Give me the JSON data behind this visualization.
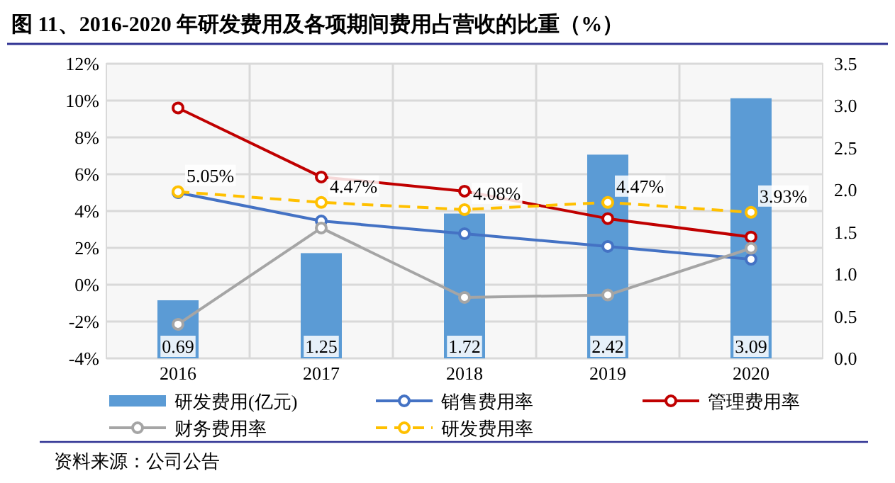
{
  "chart_data": {
    "type": "line",
    "title": "图 11、2016-2020 年研发费用及各项期间费用占营收的比重（%）",
    "annotations": [
      "资料来源：公司公告"
    ],
    "categories": [
      "2016",
      "2017",
      "2018",
      "2019",
      "2020"
    ],
    "ylim": [
      -4,
      12
    ],
    "yticks": [
      {
        "value": -4,
        "label": "-4%"
      },
      {
        "value": -2,
        "label": "-2%"
      },
      {
        "value": 0,
        "label": "0%"
      },
      {
        "value": 2,
        "label": "2%"
      },
      {
        "value": 4,
        "label": "4%"
      },
      {
        "value": 6,
        "label": "6%"
      },
      {
        "value": 8,
        "label": "8%"
      },
      {
        "value": 10,
        "label": "10%"
      },
      {
        "value": 12,
        "label": "12%"
      }
    ],
    "y2lim": [
      0,
      3.5
    ],
    "y2ticks": [
      {
        "value": 0,
        "label": "0.0"
      },
      {
        "value": 0.5,
        "label": "0.5"
      },
      {
        "value": 1,
        "label": "1.0"
      },
      {
        "value": 1.5,
        "label": "1.5"
      },
      {
        "value": 2,
        "label": "2.0"
      },
      {
        "value": 2.5,
        "label": "2.5"
      },
      {
        "value": 3,
        "label": "3.0"
      },
      {
        "value": 3.5,
        "label": "3.5"
      }
    ],
    "grid": true,
    "legend": "bottom",
    "marker": "circle",
    "series": [
      {
        "name": "研发费用(亿元)",
        "type": "bar",
        "axis": "y2",
        "color": "#5b9bd5",
        "values": [
          0.69,
          1.25,
          1.72,
          2.42,
          3.09
        ],
        "value_labels": [
          "0.69",
          "1.25",
          "1.72",
          "2.42",
          "3.09"
        ]
      },
      {
        "name": "销售费用率",
        "color": "#4472c4",
        "values": [
          5.0,
          3.46,
          2.77,
          2.08,
          1.38
        ]
      },
      {
        "name": "管理费用率",
        "color": "#c00000",
        "values": [
          9.6,
          5.85,
          5.08,
          3.59,
          2.59
        ]
      },
      {
        "name": "财务费用率",
        "color": "#a5a5a5",
        "values": [
          -2.15,
          3.08,
          -0.69,
          -0.56,
          1.98
        ]
      },
      {
        "name": "研发费用率",
        "color": "#ffc000",
        "line_style": "dashed",
        "values": [
          5.05,
          4.47,
          4.08,
          4.47,
          3.93
        ],
        "value_labels": [
          "5.05%",
          "4.47%",
          "4.08%",
          "4.47%",
          "3.93%"
        ]
      }
    ]
  }
}
